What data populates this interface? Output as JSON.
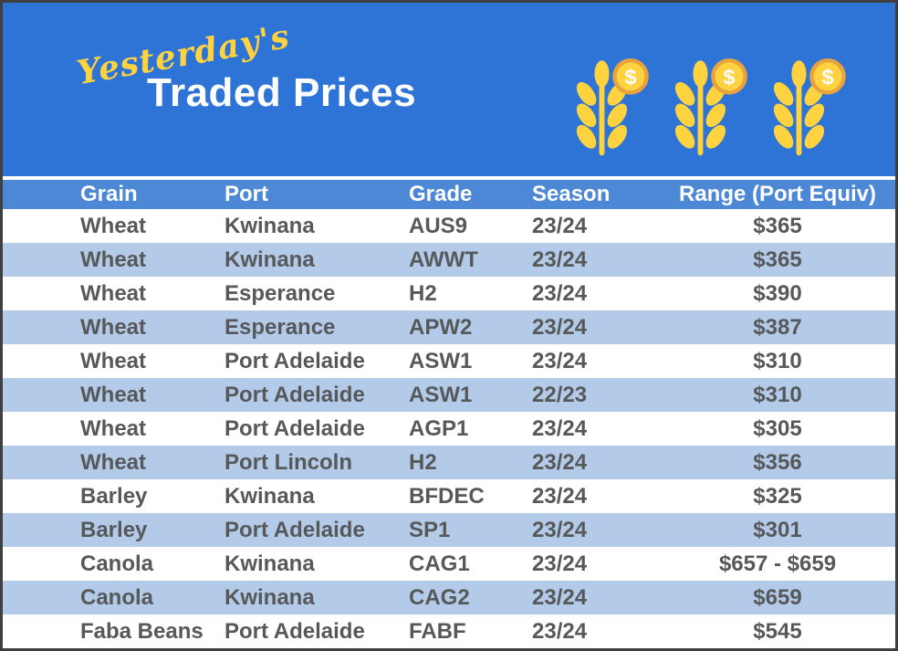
{
  "header": {
    "pretitle": "Yesterday's",
    "title": "Traded Prices"
  },
  "icons": {
    "wheat_coin_icon": "wheat-stalk-with-dollar-coin",
    "count": 3,
    "coin_symbol": "$"
  },
  "colors": {
    "hero_bg": "#2e74d6",
    "table_header_bg": "#4d88d6",
    "row_alt_bg": "#b3cbe8",
    "accent_yellow": "#FFD23F",
    "coin_outline": "#E8A33D",
    "body_text": "#57585a"
  },
  "chart_data": {
    "type": "table",
    "title": "Yesterday's Traded Prices",
    "columns": [
      "Grain",
      "Port",
      "Grade",
      "Season",
      "Range (Port Equiv)"
    ],
    "rows": [
      {
        "grain": "Wheat",
        "port": "Kwinana",
        "grade": "AUS9",
        "season": "23/24",
        "range": "$365"
      },
      {
        "grain": "Wheat",
        "port": "Kwinana",
        "grade": "AWWT",
        "season": "23/24",
        "range": "$365"
      },
      {
        "grain": "Wheat",
        "port": "Esperance",
        "grade": "H2",
        "season": "23/24",
        "range": "$390"
      },
      {
        "grain": "Wheat",
        "port": "Esperance",
        "grade": "APW2",
        "season": "23/24",
        "range": "$387"
      },
      {
        "grain": "Wheat",
        "port": "Port Adelaide",
        "grade": "ASW1",
        "season": "23/24",
        "range": "$310"
      },
      {
        "grain": "Wheat",
        "port": "Port Adelaide",
        "grade": "ASW1",
        "season": "22/23",
        "range": "$310"
      },
      {
        "grain": "Wheat",
        "port": "Port Adelaide",
        "grade": "AGP1",
        "season": "23/24",
        "range": "$305"
      },
      {
        "grain": "Wheat",
        "port": "Port Lincoln",
        "grade": "H2",
        "season": "23/24",
        "range": "$356"
      },
      {
        "grain": "Barley",
        "port": "Kwinana",
        "grade": "BFDEC",
        "season": "23/24",
        "range": "$325"
      },
      {
        "grain": "Barley",
        "port": "Port Adelaide",
        "grade": "SP1",
        "season": "23/24",
        "range": "$301"
      },
      {
        "grain": "Canola",
        "port": "Kwinana",
        "grade": "CAG1",
        "season": "23/24",
        "range": "$657 - $659"
      },
      {
        "grain": "Canola",
        "port": "Kwinana",
        "grade": "CAG2",
        "season": "23/24",
        "range": "$659"
      },
      {
        "grain": "Faba Beans",
        "port": "Port Adelaide",
        "grade": "FABF",
        "season": "23/24",
        "range": "$545"
      }
    ]
  }
}
